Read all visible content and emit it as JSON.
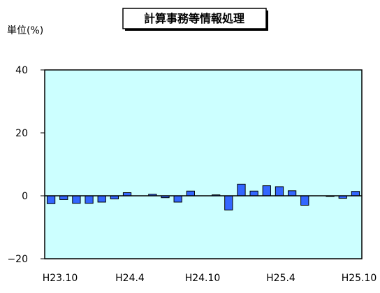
{
  "chart_data": {
    "type": "bar",
    "title": "計算事務等情報処理",
    "unit_label": "単位(%)",
    "ylim": [
      -20,
      40
    ],
    "yticks": [
      40,
      20,
      0,
      -20
    ],
    "xtick_labels": [
      "H23.10",
      "H24.4",
      "H24.10",
      "H25.4",
      "H25.10"
    ],
    "grid": false,
    "colors": {
      "plot_bg": "#ccffff",
      "bar": "#3366ff",
      "bar_edge": "#000000"
    },
    "categories": [
      "H23.10",
      "H23.11",
      "H23.12",
      "H24.1",
      "H24.2",
      "H24.3",
      "H24.4",
      "H24.5",
      "H24.6",
      "H24.7",
      "H24.8",
      "H24.9",
      "H24.10",
      "H24.11",
      "H24.12",
      "H25.1",
      "H25.2",
      "H25.3",
      "H25.4",
      "H25.5",
      "H25.6",
      "H25.7",
      "H25.8",
      "H25.9",
      "H25.10"
    ],
    "values": [
      -2.5,
      -1.2,
      -2.4,
      -2.4,
      -2.0,
      -1.0,
      1.0,
      0,
      0.5,
      -0.6,
      -2.0,
      1.5,
      0,
      0.3,
      -4.5,
      3.7,
      1.5,
      3.2,
      2.9,
      1.6,
      -3.0,
      0,
      -0.2,
      -0.8,
      1.4
    ]
  }
}
